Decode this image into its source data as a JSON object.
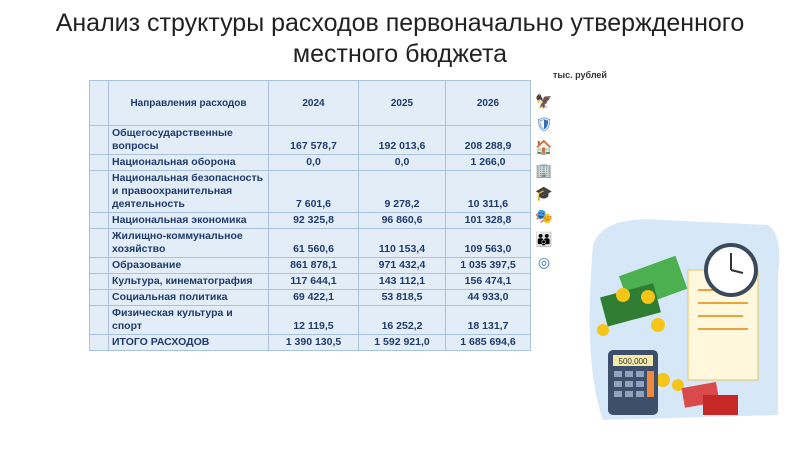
{
  "title": "Анализ структуры расходов первоначально утвержденного местного бюджета",
  "units": "тыс. рублей",
  "table": {
    "headers": [
      "Направления расходов",
      "2024",
      "2025",
      "2026"
    ],
    "rows": [
      [
        "Общегосударственные вопросы",
        "167 578,7",
        "192 013,6",
        "208 288,9"
      ],
      [
        "Национальная оборона",
        "0,0",
        "0,0",
        "1 266,0"
      ],
      [
        "Национальная безопасность и правоохранительная деятельность",
        "7 601,6",
        "9 278,2",
        "10 311,6"
      ],
      [
        "Национальная экономика",
        "92 325,8",
        "96 860,6",
        "101 328,8"
      ],
      [
        "Жилищно-коммунальное хозяйство",
        "61 560,6",
        "110 153,4",
        "109 563,0"
      ],
      [
        "Образование",
        "861 878,1",
        "971 432,4",
        "1 035 397,5"
      ],
      [
        "Культура, кинематография",
        "117 644,1",
        "143 112,1",
        "156 474,1"
      ],
      [
        "Социальная политика",
        "69 422,1",
        "53 818,5",
        "44 933,0"
      ],
      [
        "Физическая культура и спорт",
        "12 119,5",
        "16 252,2",
        "18 131,7"
      ],
      [
        "ИТОГО РАСХОДОВ",
        "1 390 130,5",
        "1 592 921,0",
        "1 685 694,6"
      ]
    ]
  },
  "icons": [
    "emblem-icon",
    "shield-icon",
    "house-icon",
    "building-icon",
    "graduation-cap-icon",
    "theater-icon",
    "family-icon",
    "sport-icon"
  ],
  "calculator_display": "500,000"
}
